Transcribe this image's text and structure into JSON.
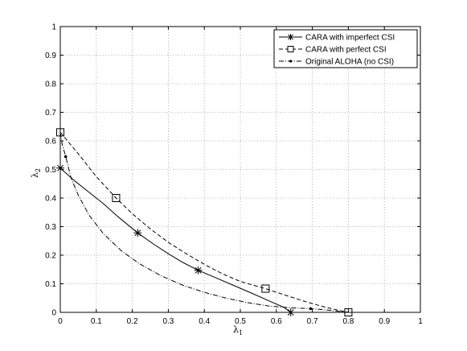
{
  "chart_data": {
    "type": "line",
    "title": "",
    "xlabel": "λ",
    "xlabel_sub": "1",
    "ylabel": "λ",
    "ylabel_sub": "2",
    "xlim": [
      0,
      1
    ],
    "ylim": [
      0,
      1
    ],
    "xticks": [
      "0",
      "0.1",
      "0.2",
      "0.3",
      "0.4",
      "0.5",
      "0.6",
      "0.7",
      "0.8",
      "0.9",
      "1"
    ],
    "yticks": [
      "0",
      "0.1",
      "0.2",
      "0.3",
      "0.4",
      "0.5",
      "0.6",
      "0.7",
      "0.8",
      "0.9",
      "1"
    ],
    "grid": true,
    "legend_position": "top-right",
    "colors": {
      "line": "#000000",
      "grid": "#9a9a9a",
      "background": "#ffffff"
    },
    "series": [
      {
        "name": "CARA with imperfect CSI",
        "line_style": "solid",
        "marker": "asterisk",
        "x": [
          0,
          0.04,
          0.08,
          0.12,
          0.16,
          0.215,
          0.26,
          0.3,
          0.34,
          0.383,
          0.43,
          0.48,
          0.53,
          0.58,
          0.62,
          0.64
        ],
        "y": [
          0.505,
          0.46,
          0.42,
          0.38,
          0.335,
          0.278,
          0.238,
          0.205,
          0.175,
          0.147,
          0.122,
          0.095,
          0.068,
          0.04,
          0.018,
          0
        ],
        "markers_at": [
          [
            0,
            0.505
          ],
          [
            0.215,
            0.278
          ],
          [
            0.383,
            0.147
          ],
          [
            0.64,
            0
          ]
        ]
      },
      {
        "name": "CARA with perfect CSI",
        "line_style": "dashed",
        "marker": "square",
        "x": [
          0,
          0.02,
          0.05,
          0.1,
          0.155,
          0.2,
          0.25,
          0.3,
          0.35,
          0.4,
          0.45,
          0.5,
          0.57,
          0.63,
          0.68,
          0.73,
          0.77,
          0.8
        ],
        "y": [
          0.63,
          0.6,
          0.555,
          0.475,
          0.4,
          0.345,
          0.292,
          0.245,
          0.205,
          0.168,
          0.135,
          0.108,
          0.083,
          0.058,
          0.038,
          0.02,
          0.008,
          0
        ],
        "markers_at": [
          [
            0,
            0.63
          ],
          [
            0.155,
            0.4
          ],
          [
            0.57,
            0.083
          ],
          [
            0.8,
            0
          ]
        ]
      },
      {
        "name": "Original ALOHA (no CSI)",
        "line_style": "dashdot",
        "marker": "dot",
        "x": [
          0,
          0.005,
          0.015,
          0.03,
          0.05,
          0.08,
          0.12,
          0.17,
          0.22,
          0.28,
          0.34,
          0.4,
          0.46,
          0.52,
          0.58,
          0.64,
          0.695,
          0.75,
          0.8
        ],
        "y": [
          0.63,
          0.59,
          0.545,
          0.47,
          0.41,
          0.34,
          0.275,
          0.215,
          0.17,
          0.128,
          0.095,
          0.07,
          0.05,
          0.034,
          0.022,
          0.016,
          0.013,
          0.007,
          0
        ],
        "markers_at": [
          [
            0.015,
            0.545
          ],
          [
            0.695,
            0.013
          ]
        ]
      }
    ]
  }
}
